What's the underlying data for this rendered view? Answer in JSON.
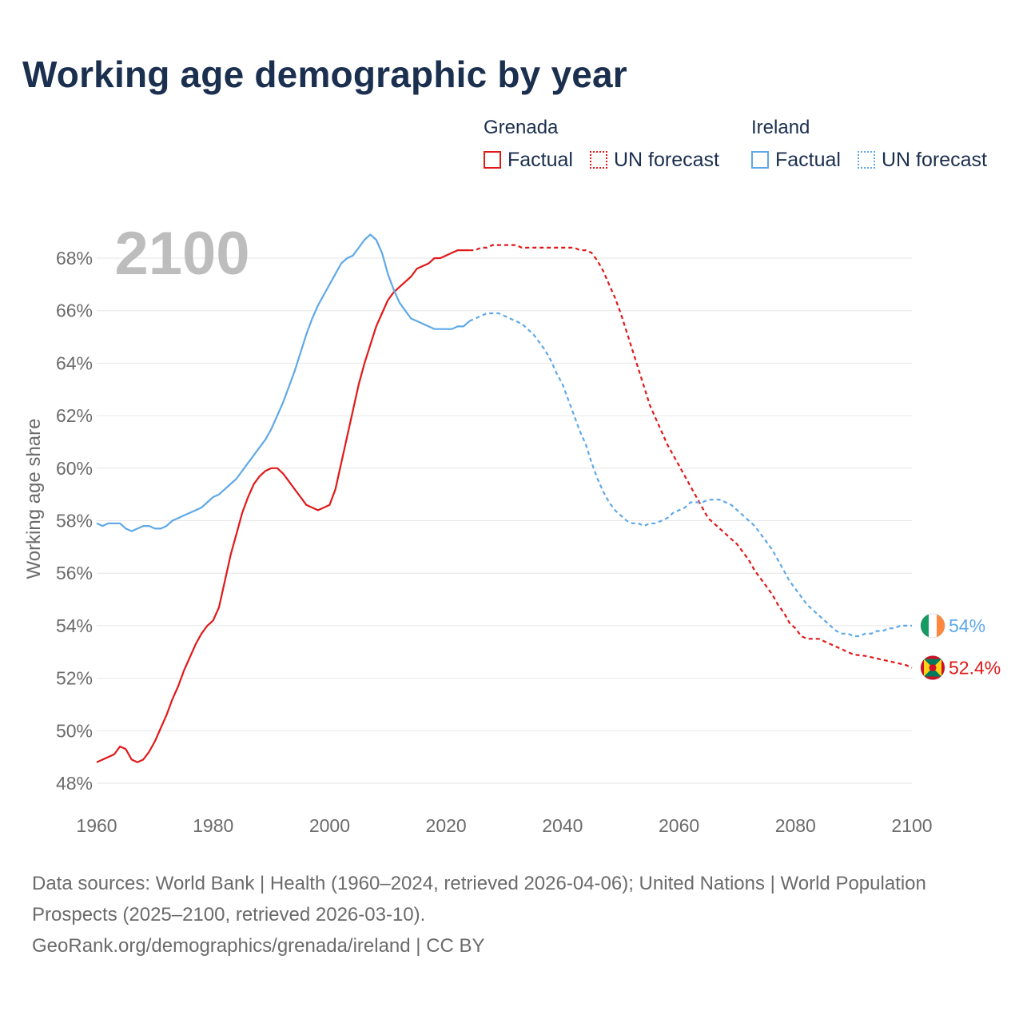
{
  "title": "Working age demographic by year",
  "legend": {
    "groups": [
      {
        "name": "Grenada",
        "color": "#e11818",
        "factual_label": "Factual",
        "forecast_label": "UN forecast"
      },
      {
        "name": "Ireland",
        "color": "#5fa8e8",
        "factual_label": "Factual",
        "forecast_label": "UN forecast"
      }
    ]
  },
  "source": {
    "line1": "Data sources: World Bank | Health (1960–2024, retrieved 2026-04-06); United Nations | World Population Prospects (2025–2100, retrieved 2026-03-10).",
    "line2": "GeoRank.org/demographics/grenada/ireland | CC BY"
  },
  "chart_data": {
    "type": "line",
    "title": "Working age demographic by year",
    "year_label": "2100",
    "xlabel": "",
    "ylabel": "Working age share",
    "xlim": [
      1960,
      2100
    ],
    "ylim": [
      47.5,
      69
    ],
    "x_ticks": [
      1960,
      1980,
      2000,
      2020,
      2040,
      2060,
      2080,
      2100
    ],
    "y_ticks": [
      48,
      50,
      52,
      54,
      56,
      58,
      60,
      62,
      64,
      66,
      68
    ],
    "y_tick_labels": [
      "48%",
      "50%",
      "52%",
      "54%",
      "56%",
      "58%",
      "60%",
      "62%",
      "64%",
      "66%",
      "68%"
    ],
    "grid": true,
    "factual_end_year": 2024,
    "series": [
      {
        "name": "Grenada",
        "color": "#e11818",
        "end_label": "52.4%",
        "flag_icon": "grenada-flag-icon",
        "points": [
          [
            1960,
            48.8
          ],
          [
            1963,
            49.1
          ],
          [
            1964,
            49.4
          ],
          [
            1965,
            49.3
          ],
          [
            1966,
            48.9
          ],
          [
            1967,
            48.8
          ],
          [
            1968,
            48.9
          ],
          [
            1969,
            49.2
          ],
          [
            1970,
            49.6
          ],
          [
            1971,
            50.1
          ],
          [
            1972,
            50.6
          ],
          [
            1973,
            51.2
          ],
          [
            1974,
            51.7
          ],
          [
            1975,
            52.3
          ],
          [
            1976,
            52.8
          ],
          [
            1977,
            53.3
          ],
          [
            1978,
            53.7
          ],
          [
            1979,
            54.0
          ],
          [
            1980,
            54.2
          ],
          [
            1981,
            54.7
          ],
          [
            1982,
            55.7
          ],
          [
            1983,
            56.7
          ],
          [
            1984,
            57.5
          ],
          [
            1985,
            58.3
          ],
          [
            1986,
            58.9
          ],
          [
            1987,
            59.4
          ],
          [
            1988,
            59.7
          ],
          [
            1989,
            59.9
          ],
          [
            1990,
            60.0
          ],
          [
            1991,
            60.0
          ],
          [
            1992,
            59.8
          ],
          [
            1993,
            59.5
          ],
          [
            1994,
            59.2
          ],
          [
            1995,
            58.9
          ],
          [
            1996,
            58.6
          ],
          [
            1997,
            58.5
          ],
          [
            1998,
            58.4
          ],
          [
            1999,
            58.5
          ],
          [
            2000,
            58.6
          ],
          [
            2001,
            59.2
          ],
          [
            2002,
            60.2
          ],
          [
            2003,
            61.2
          ],
          [
            2004,
            62.2
          ],
          [
            2005,
            63.2
          ],
          [
            2006,
            64.0
          ],
          [
            2007,
            64.7
          ],
          [
            2008,
            65.4
          ],
          [
            2009,
            65.9
          ],
          [
            2010,
            66.4
          ],
          [
            2011,
            66.7
          ],
          [
            2012,
            66.9
          ],
          [
            2013,
            67.1
          ],
          [
            2014,
            67.3
          ],
          [
            2015,
            67.6
          ],
          [
            2016,
            67.7
          ],
          [
            2017,
            67.8
          ],
          [
            2018,
            68.0
          ],
          [
            2019,
            68.0
          ],
          [
            2020,
            68.1
          ],
          [
            2021,
            68.2
          ],
          [
            2022,
            68.3
          ],
          [
            2023,
            68.3
          ],
          [
            2024,
            68.3
          ],
          [
            2025,
            68.3
          ],
          [
            2026,
            68.4
          ],
          [
            2027,
            68.4
          ],
          [
            2028,
            68.5
          ],
          [
            2031,
            68.5
          ],
          [
            2032,
            68.5
          ],
          [
            2033,
            68.4
          ],
          [
            2040,
            68.4
          ],
          [
            2042,
            68.4
          ],
          [
            2043,
            68.3
          ],
          [
            2044,
            68.3
          ],
          [
            2045,
            68.2
          ],
          [
            2046,
            67.9
          ],
          [
            2047,
            67.5
          ],
          [
            2048,
            67.0
          ],
          [
            2049,
            66.5
          ],
          [
            2050,
            65.9
          ],
          [
            2051,
            65.2
          ],
          [
            2052,
            64.5
          ],
          [
            2053,
            63.8
          ],
          [
            2054,
            63.1
          ],
          [
            2055,
            62.4
          ],
          [
            2056,
            61.9
          ],
          [
            2057,
            61.4
          ],
          [
            2058,
            60.9
          ],
          [
            2059,
            60.5
          ],
          [
            2060,
            60.1
          ],
          [
            2061,
            59.7
          ],
          [
            2062,
            59.3
          ],
          [
            2063,
            58.9
          ],
          [
            2064,
            58.5
          ],
          [
            2065,
            58.1
          ],
          [
            2066,
            57.9
          ],
          [
            2067,
            57.7
          ],
          [
            2068,
            57.5
          ],
          [
            2069,
            57.3
          ],
          [
            2070,
            57.1
          ],
          [
            2071,
            56.8
          ],
          [
            2072,
            56.5
          ],
          [
            2073,
            56.1
          ],
          [
            2074,
            55.8
          ],
          [
            2075,
            55.5
          ],
          [
            2076,
            55.2
          ],
          [
            2077,
            54.8
          ],
          [
            2078,
            54.5
          ],
          [
            2079,
            54.1
          ],
          [
            2080,
            53.9
          ],
          [
            2081,
            53.6
          ],
          [
            2082,
            53.5
          ],
          [
            2084,
            53.5
          ],
          [
            2085,
            53.4
          ],
          [
            2086,
            53.3
          ],
          [
            2087,
            53.2
          ],
          [
            2088,
            53.1
          ],
          [
            2089,
            53.0
          ],
          [
            2090,
            52.9
          ],
          [
            2092,
            52.85
          ],
          [
            2093,
            52.8
          ],
          [
            2095,
            52.7
          ],
          [
            2096,
            52.65
          ],
          [
            2098,
            52.55
          ],
          [
            2099,
            52.5
          ],
          [
            2100,
            52.4
          ]
        ]
      },
      {
        "name": "Ireland",
        "color": "#5fa8e8",
        "end_label": "54%",
        "flag_icon": "ireland-flag-icon",
        "points": [
          [
            1960,
            57.9
          ],
          [
            1961,
            57.8
          ],
          [
            1962,
            57.9
          ],
          [
            1963,
            57.9
          ],
          [
            1964,
            57.9
          ],
          [
            1965,
            57.7
          ],
          [
            1966,
            57.6
          ],
          [
            1967,
            57.7
          ],
          [
            1968,
            57.8
          ],
          [
            1969,
            57.8
          ],
          [
            1970,
            57.7
          ],
          [
            1971,
            57.7
          ],
          [
            1972,
            57.8
          ],
          [
            1973,
            58.0
          ],
          [
            1974,
            58.1
          ],
          [
            1975,
            58.2
          ],
          [
            1976,
            58.3
          ],
          [
            1977,
            58.4
          ],
          [
            1978,
            58.5
          ],
          [
            1979,
            58.7
          ],
          [
            1980,
            58.9
          ],
          [
            1981,
            59.0
          ],
          [
            1982,
            59.2
          ],
          [
            1983,
            59.4
          ],
          [
            1984,
            59.6
          ],
          [
            1985,
            59.9
          ],
          [
            1986,
            60.2
          ],
          [
            1987,
            60.5
          ],
          [
            1988,
            60.8
          ],
          [
            1989,
            61.1
          ],
          [
            1990,
            61.5
          ],
          [
            1991,
            62.0
          ],
          [
            1992,
            62.5
          ],
          [
            1993,
            63.1
          ],
          [
            1994,
            63.7
          ],
          [
            1995,
            64.4
          ],
          [
            1996,
            65.1
          ],
          [
            1997,
            65.7
          ],
          [
            1998,
            66.2
          ],
          [
            1999,
            66.6
          ],
          [
            2000,
            67.0
          ],
          [
            2001,
            67.4
          ],
          [
            2002,
            67.8
          ],
          [
            2003,
            68.0
          ],
          [
            2004,
            68.1
          ],
          [
            2005,
            68.4
          ],
          [
            2006,
            68.7
          ],
          [
            2007,
            68.9
          ],
          [
            2008,
            68.7
          ],
          [
            2009,
            68.2
          ],
          [
            2010,
            67.4
          ],
          [
            2011,
            66.8
          ],
          [
            2012,
            66.3
          ],
          [
            2013,
            66.0
          ],
          [
            2014,
            65.7
          ],
          [
            2015,
            65.6
          ],
          [
            2016,
            65.5
          ],
          [
            2017,
            65.4
          ],
          [
            2018,
            65.3
          ],
          [
            2019,
            65.3
          ],
          [
            2020,
            65.3
          ],
          [
            2021,
            65.3
          ],
          [
            2022,
            65.4
          ],
          [
            2023,
            65.4
          ],
          [
            2024,
            65.6
          ],
          [
            2025,
            65.7
          ],
          [
            2026,
            65.8
          ],
          [
            2027,
            65.9
          ],
          [
            2029,
            65.9
          ],
          [
            2030,
            65.8
          ],
          [
            2031,
            65.7
          ],
          [
            2033,
            65.5
          ],
          [
            2034,
            65.3
          ],
          [
            2035,
            65.1
          ],
          [
            2036,
            64.8
          ],
          [
            2037,
            64.5
          ],
          [
            2038,
            64.1
          ],
          [
            2039,
            63.6
          ],
          [
            2040,
            63.2
          ],
          [
            2041,
            62.6
          ],
          [
            2042,
            62.0
          ],
          [
            2043,
            61.4
          ],
          [
            2044,
            60.9
          ],
          [
            2045,
            60.2
          ],
          [
            2046,
            59.6
          ],
          [
            2047,
            59.1
          ],
          [
            2048,
            58.7
          ],
          [
            2049,
            58.4
          ],
          [
            2050,
            58.2
          ],
          [
            2051,
            58.0
          ],
          [
            2052,
            57.9
          ],
          [
            2053,
            57.9
          ],
          [
            2054,
            57.8
          ],
          [
            2055,
            57.9
          ],
          [
            2056,
            57.9
          ],
          [
            2057,
            58.0
          ],
          [
            2058,
            58.1
          ],
          [
            2059,
            58.3
          ],
          [
            2060,
            58.4
          ],
          [
            2061,
            58.5
          ],
          [
            2062,
            58.7
          ],
          [
            2063,
            58.7
          ],
          [
            2064,
            58.7
          ],
          [
            2065,
            58.8
          ],
          [
            2066,
            58.8
          ],
          [
            2067,
            58.8
          ],
          [
            2068,
            58.7
          ],
          [
            2069,
            58.6
          ],
          [
            2070,
            58.4
          ],
          [
            2071,
            58.2
          ],
          [
            2072,
            58.0
          ],
          [
            2073,
            57.8
          ],
          [
            2074,
            57.5
          ],
          [
            2075,
            57.2
          ],
          [
            2076,
            56.9
          ],
          [
            2077,
            56.5
          ],
          [
            2078,
            56.1
          ],
          [
            2079,
            55.7
          ],
          [
            2080,
            55.4
          ],
          [
            2081,
            55.1
          ],
          [
            2082,
            54.8
          ],
          [
            2083,
            54.6
          ],
          [
            2084,
            54.4
          ],
          [
            2085,
            54.2
          ],
          [
            2086,
            54.0
          ],
          [
            2087,
            53.8
          ],
          [
            2088,
            53.7
          ],
          [
            2089,
            53.7
          ],
          [
            2090,
            53.6
          ],
          [
            2091,
            53.6
          ],
          [
            2092,
            53.7
          ],
          [
            2093,
            53.7
          ],
          [
            2094,
            53.8
          ],
          [
            2095,
            53.8
          ],
          [
            2096,
            53.9
          ],
          [
            2097,
            53.9
          ],
          [
            2098,
            54.0
          ],
          [
            2100,
            54.0
          ]
        ]
      }
    ]
  }
}
